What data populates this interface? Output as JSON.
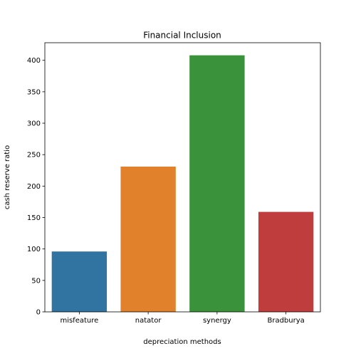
{
  "chart_data": {
    "type": "bar",
    "title": "Financial Inclusion",
    "xlabel": "depreciation methods",
    "ylabel": "cash reserve ratio",
    "categories": [
      "misfeature",
      "natator",
      "synergy",
      "Bradburya"
    ],
    "values": [
      96,
      231,
      408,
      159
    ],
    "colors": [
      "#3274a1",
      "#e1812c",
      "#3a923a",
      "#c03d3e"
    ],
    "ylim": [
      0,
      428
    ],
    "yticks": [
      0,
      50,
      100,
      150,
      200,
      250,
      300,
      350,
      400
    ],
    "grid": false,
    "legend": "none"
  }
}
